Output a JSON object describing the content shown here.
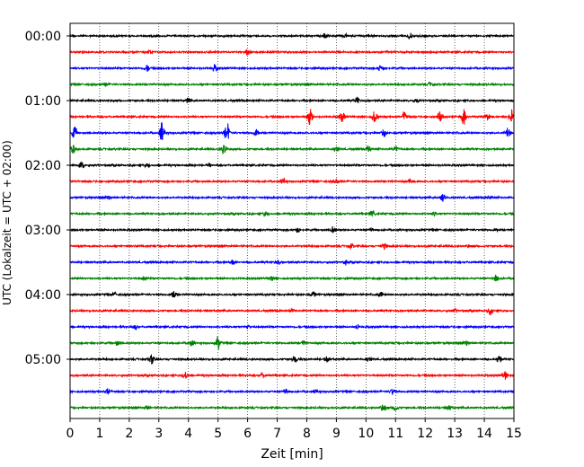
{
  "chart_data": {
    "type": "line",
    "title": "",
    "xlabel": "Zeit  [min]",
    "ylabel": "UTC (Lokalzeit = UTC + 02:00)",
    "xlim": [
      0,
      15
    ],
    "x_ticks": [
      "0",
      "1",
      "2",
      "3",
      "4",
      "5",
      "6",
      "7",
      "8",
      "9",
      "10",
      "11",
      "12",
      "13",
      "14",
      "15"
    ],
    "y_ticks": [
      "00:00",
      "01:00",
      "02:00",
      "03:00",
      "04:00",
      "05:00"
    ],
    "grid": "vertical dotted lines at each minute",
    "trace_colors": [
      "#000000",
      "#ff0000",
      "#0000ff",
      "#008000"
    ],
    "trace_interval_minutes": 15,
    "trace_count": 24,
    "traces": [
      {
        "start": "00:00",
        "color": "#000000",
        "events": [
          [
            8.6,
            0.4
          ],
          [
            9.3,
            0.25
          ],
          [
            11.5,
            0.3
          ]
        ]
      },
      {
        "start": "00:15",
        "color": "#ff0000",
        "events": [
          [
            6.0,
            0.5
          ],
          [
            2.7,
            0.2
          ]
        ]
      },
      {
        "start": "00:30",
        "color": "#0000ff",
        "events": [
          [
            2.6,
            0.5
          ],
          [
            4.9,
            0.5
          ],
          [
            10.5,
            0.6
          ]
        ]
      },
      {
        "start": "00:45",
        "color": "#008000",
        "events": [
          [
            12.2,
            0.3
          ],
          [
            1.2,
            0.2
          ]
        ]
      },
      {
        "start": "01:00",
        "color": "#000000",
        "events": [
          [
            4.0,
            0.3
          ],
          [
            9.7,
            0.5
          ],
          [
            11.7,
            0.3
          ]
        ]
      },
      {
        "start": "01:15",
        "color": "#ff0000",
        "events": [
          [
            8.1,
            1.3
          ],
          [
            9.2,
            0.8
          ],
          [
            10.3,
            0.9
          ],
          [
            11.3,
            0.7
          ],
          [
            12.5,
            0.7
          ],
          [
            13.3,
            1.2
          ],
          [
            14.1,
            0.6
          ],
          [
            14.9,
            1.0
          ]
        ]
      },
      {
        "start": "01:30",
        "color": "#0000ff",
        "events": [
          [
            0.15,
            0.9
          ],
          [
            3.1,
            1.3
          ],
          [
            5.3,
            1.4
          ],
          [
            6.3,
            0.7
          ],
          [
            10.6,
            0.5
          ],
          [
            14.8,
            0.7
          ]
        ]
      },
      {
        "start": "01:45",
        "color": "#008000",
        "events": [
          [
            0.1,
            0.7
          ],
          [
            5.2,
            0.8
          ],
          [
            9.0,
            0.4
          ],
          [
            10.1,
            0.5
          ],
          [
            11.0,
            0.4
          ]
        ]
      },
      {
        "start": "02:00",
        "color": "#000000",
        "events": [
          [
            0.4,
            0.5
          ],
          [
            2.6,
            0.25
          ],
          [
            4.7,
            0.3
          ]
        ]
      },
      {
        "start": "02:15",
        "color": "#ff0000",
        "events": [
          [
            7.2,
            0.4
          ],
          [
            9.0,
            0.3
          ],
          [
            11.5,
            0.3
          ]
        ]
      },
      {
        "start": "02:30",
        "color": "#0000ff",
        "events": [
          [
            1.3,
            0.2
          ],
          [
            12.6,
            0.5
          ],
          [
            14.2,
            0.2
          ]
        ]
      },
      {
        "start": "02:45",
        "color": "#008000",
        "events": [
          [
            6.6,
            0.35
          ],
          [
            10.2,
            0.4
          ],
          [
            12.3,
            0.2
          ]
        ]
      },
      {
        "start": "03:00",
        "color": "#000000",
        "events": [
          [
            7.7,
            0.35
          ],
          [
            8.9,
            0.5
          ],
          [
            10.2,
            0.3
          ],
          [
            14.4,
            0.25
          ]
        ]
      },
      {
        "start": "03:15",
        "color": "#ff0000",
        "events": [
          [
            9.5,
            0.35
          ],
          [
            10.6,
            0.4
          ],
          [
            13.5,
            0.2
          ]
        ]
      },
      {
        "start": "03:30",
        "color": "#0000ff",
        "events": [
          [
            5.5,
            0.5
          ],
          [
            7.0,
            0.35
          ],
          [
            9.3,
            0.3
          ]
        ]
      },
      {
        "start": "03:45",
        "color": "#008000",
        "events": [
          [
            6.8,
            0.4
          ],
          [
            14.4,
            0.4
          ],
          [
            2.5,
            0.2
          ]
        ]
      },
      {
        "start": "04:00",
        "color": "#000000",
        "events": [
          [
            3.5,
            0.7
          ],
          [
            8.2,
            0.5
          ],
          [
            10.5,
            0.4
          ],
          [
            1.5,
            0.25
          ]
        ]
      },
      {
        "start": "04:15",
        "color": "#ff0000",
        "events": [
          [
            13.0,
            0.3
          ],
          [
            14.2,
            0.5
          ],
          [
            7.5,
            0.2
          ]
        ]
      },
      {
        "start": "04:30",
        "color": "#0000ff",
        "events": [
          [
            2.2,
            0.35
          ],
          [
            9.7,
            0.35
          ],
          [
            6.0,
            0.2
          ]
        ]
      },
      {
        "start": "04:45",
        "color": "#008000",
        "events": [
          [
            4.1,
            0.5
          ],
          [
            5.0,
            0.9
          ],
          [
            1.6,
            0.3
          ],
          [
            7.9,
            0.3
          ],
          [
            13.4,
            0.3
          ]
        ]
      },
      {
        "start": "05:00",
        "color": "#000000",
        "events": [
          [
            2.75,
            0.7
          ],
          [
            7.6,
            0.5
          ],
          [
            8.7,
            0.4
          ],
          [
            10.1,
            0.3
          ],
          [
            14.5,
            0.5
          ]
        ]
      },
      {
        "start": "05:15",
        "color": "#ff0000",
        "events": [
          [
            3.9,
            0.5
          ],
          [
            6.5,
            0.3
          ],
          [
            14.7,
            0.7
          ]
        ]
      },
      {
        "start": "05:30",
        "color": "#0000ff",
        "events": [
          [
            1.3,
            0.4
          ],
          [
            7.3,
            0.5
          ],
          [
            10.9,
            0.4
          ],
          [
            8.3,
            0.25
          ]
        ]
      },
      {
        "start": "05:45",
        "color": "#008000",
        "events": [
          [
            10.6,
            0.6
          ],
          [
            11.0,
            0.5
          ],
          [
            12.8,
            0.35
          ],
          [
            2.6,
            0.2
          ]
        ]
      }
    ]
  }
}
